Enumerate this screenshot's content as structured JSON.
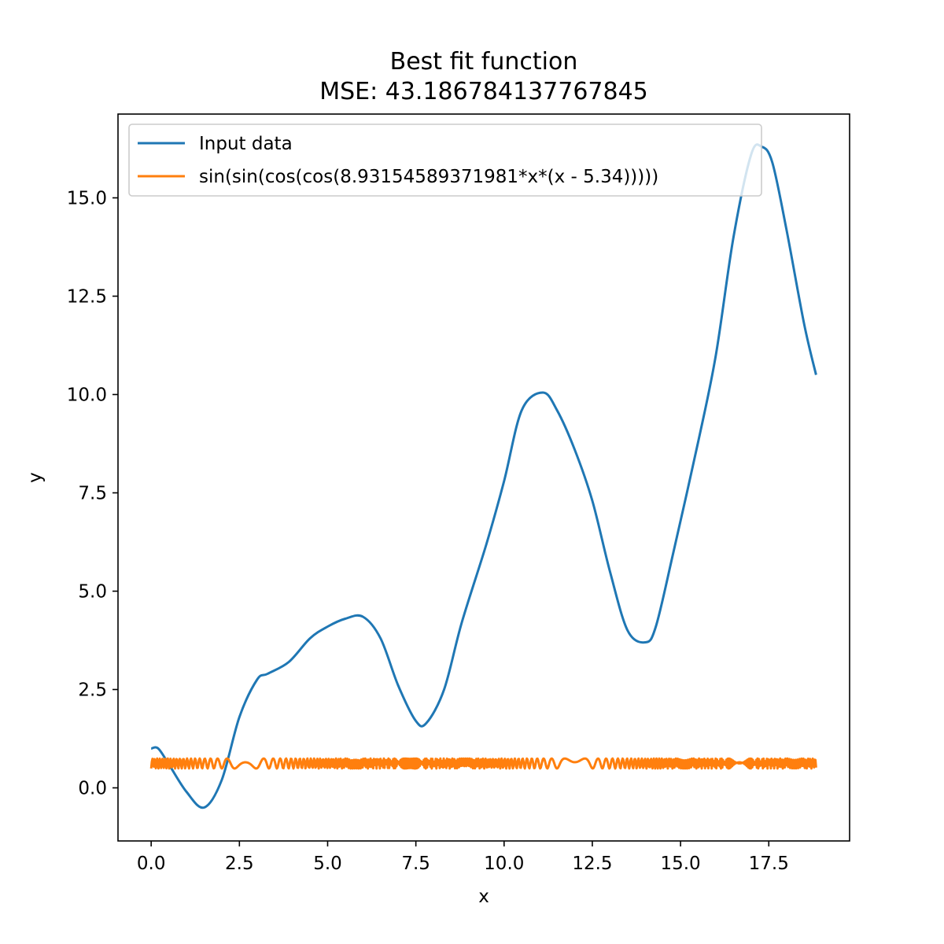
{
  "chart_data": {
    "type": "line",
    "title": "Best fit function",
    "subtitle": "MSE: 43.186784137767845",
    "xlabel": "x",
    "ylabel": "y",
    "xlim": [
      -0.94,
      19.79
    ],
    "ylim": [
      -1.35,
      17.13
    ],
    "xticks": [
      0.0,
      2.5,
      5.0,
      7.5,
      10.0,
      12.5,
      15.0,
      17.5
    ],
    "xtick_labels": [
      "0.0",
      "2.5",
      "5.0",
      "7.5",
      "10.0",
      "12.5",
      "15.0",
      "17.5"
    ],
    "yticks": [
      0.0,
      2.5,
      5.0,
      7.5,
      10.0,
      12.5,
      15.0
    ],
    "ytick_labels": [
      "0.0",
      "2.5",
      "5.0",
      "7.5",
      "10.0",
      "12.5",
      "15.0"
    ],
    "grid": false,
    "legend": "top-left",
    "series": [
      {
        "name": "Input data",
        "color": "#1f77b4",
        "x": [
          0.0,
          0.2,
          0.5,
          1.0,
          1.5,
          2.0,
          2.5,
          3.0,
          3.3,
          3.9,
          4.5,
          5.0,
          5.5,
          6.0,
          6.5,
          7.0,
          7.5,
          7.8,
          8.3,
          8.8,
          9.5,
          10.0,
          10.5,
          11.1,
          11.5,
          12.0,
          12.5,
          13.0,
          13.5,
          14.0,
          14.3,
          14.8,
          15.5,
          16.0,
          16.5,
          17.0,
          17.3,
          17.6,
          18.0,
          18.5,
          18.84
        ],
        "y": [
          1.0,
          1.0,
          0.6,
          -0.1,
          -0.5,
          0.2,
          1.8,
          2.75,
          2.9,
          3.2,
          3.8,
          4.1,
          4.3,
          4.35,
          3.8,
          2.6,
          1.7,
          1.65,
          2.5,
          4.2,
          6.2,
          7.8,
          9.6,
          10.05,
          9.6,
          8.6,
          7.3,
          5.5,
          4.0,
          3.7,
          4.1,
          6.0,
          8.8,
          11.0,
          14.0,
          16.1,
          16.3,
          15.9,
          14.2,
          11.8,
          10.5
        ]
      },
      {
        "name": "sin(sin(cos(cos(8.93154589371981*x*(x - 5.34)))))",
        "color": "#ff7f0e",
        "x_range": [
          0.0,
          18.84
        ],
        "y_min": 0.53,
        "y_max": 0.74
      }
    ]
  }
}
